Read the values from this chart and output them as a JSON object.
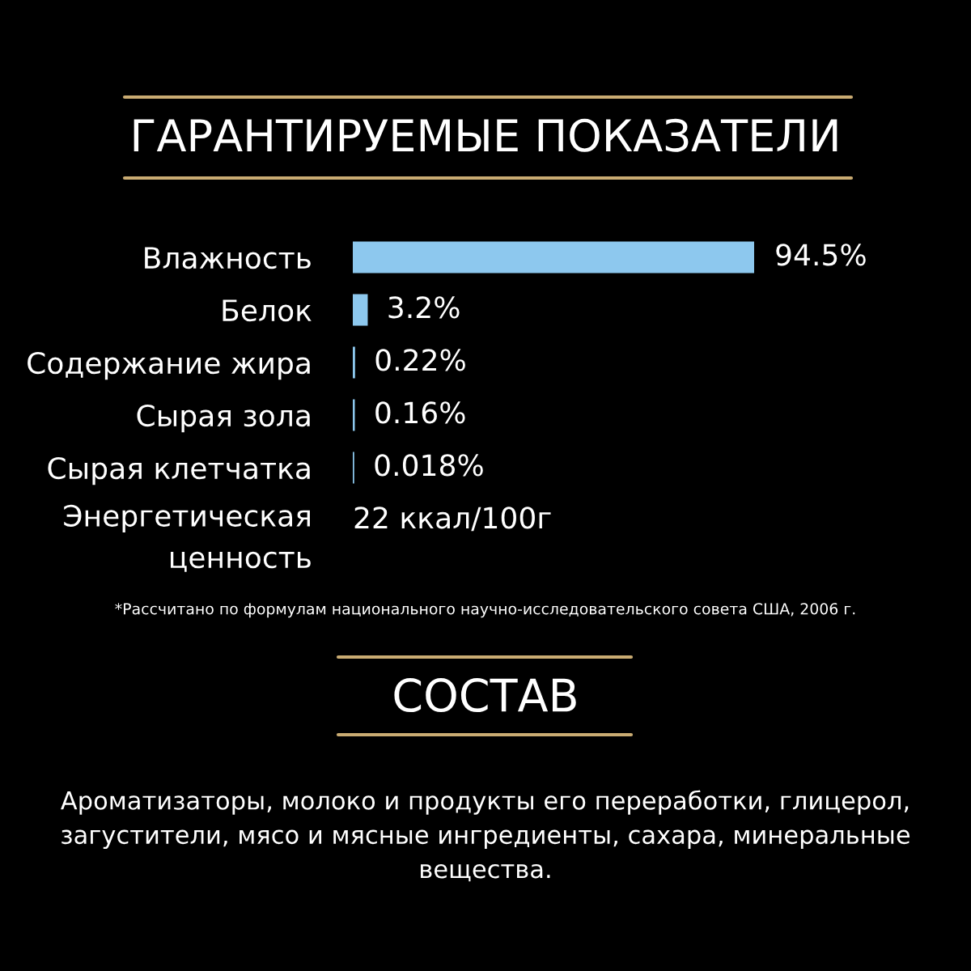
{
  "chart_data": {
    "type": "bar",
    "orientation": "horizontal",
    "title": "ГАРАНТИРУЕМЫЕ ПОКАЗАТЕЛИ",
    "categories": [
      "Влажность",
      "Белок",
      "Содержание жира",
      "Сырая зола",
      "Сырая клетчатка",
      "Энергетическая\nценность"
    ],
    "values": [
      94.5,
      3.2,
      0.22,
      0.16,
      0.018,
      null
    ],
    "value_labels": [
      "94.5%",
      "3.2%",
      "0.22%",
      "0.16%",
      "0.018%",
      "22 ккал/100г"
    ],
    "color": "#8dc8ee",
    "tick_labels": "y",
    "annotations": [
      "*Рассчитано по формулам национального научно-исследовательского совета США, 2006 г.",
      "СОСТАВ",
      "Ароматизаторы, молоко и продукты его переработки, глицерол,\nзагустители, мясо и мясные ингредиенты, сахара, минеральные\nвещества."
    ]
  }
}
